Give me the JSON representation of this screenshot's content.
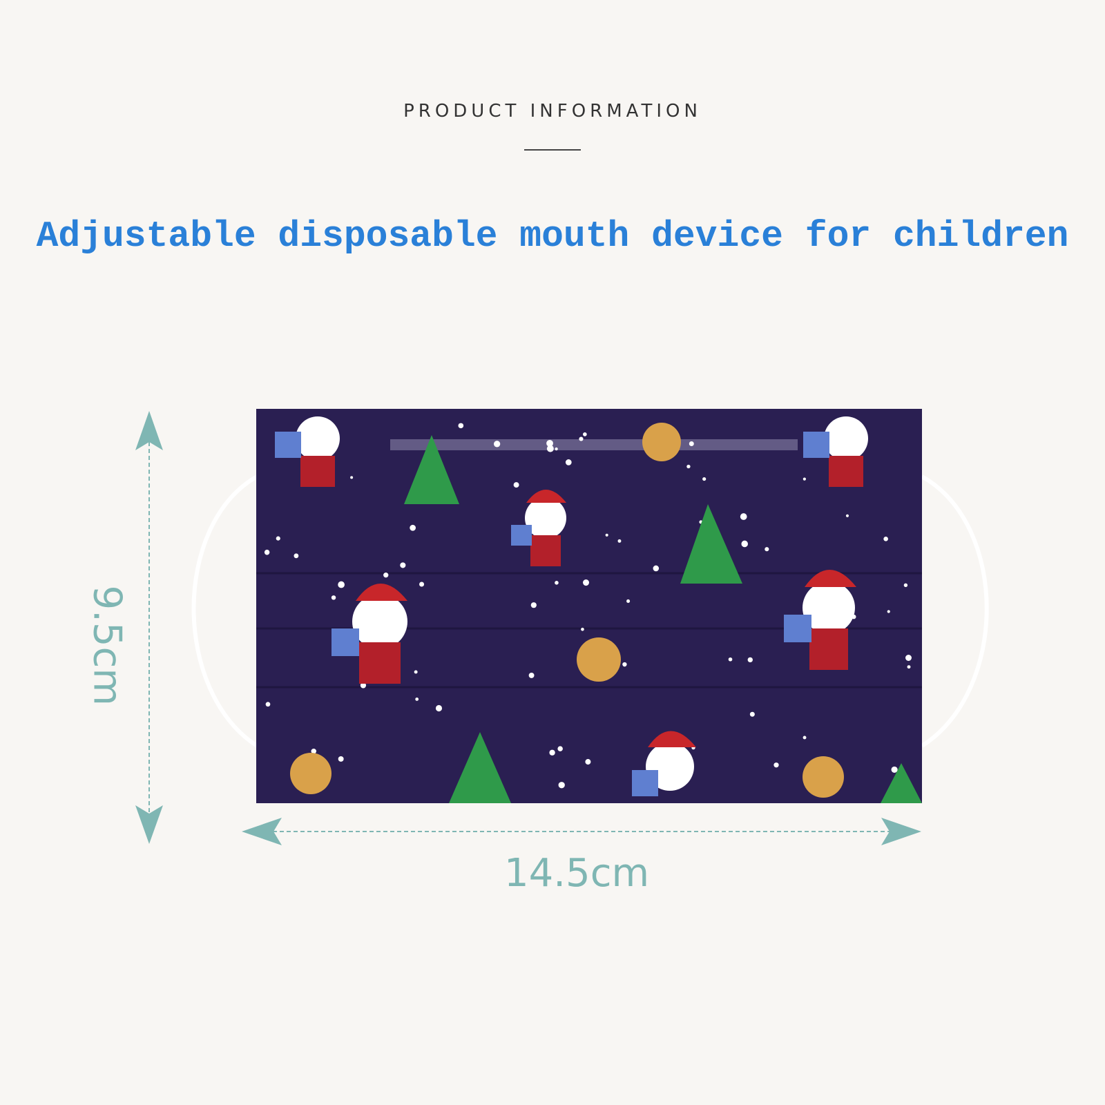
{
  "header": {
    "section_label": "PRODUCT INFORMATION"
  },
  "title": "Adjustable disposable mouth device for children",
  "product": {
    "pattern": "christmas santa reindeer tree",
    "color": "#2a1f52"
  },
  "dimensions": {
    "width_label": "14.5cm",
    "height_label": "9.5cm",
    "arrow_color": "#7fb6b3"
  }
}
